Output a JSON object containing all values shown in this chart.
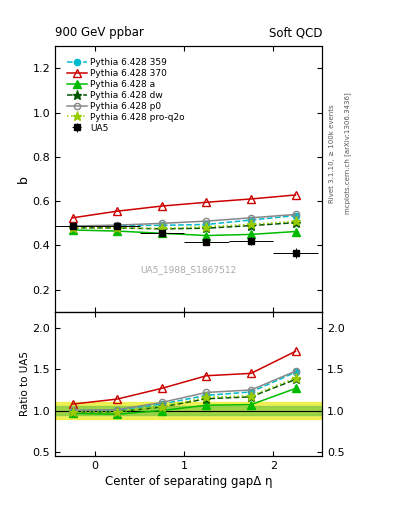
{
  "title_left": "900 GeV ppbar",
  "title_right": "Soft QCD",
  "ylabel_main": "b",
  "ylabel_ratio": "Ratio to UA5",
  "xlabel": "Center of separating gapΔ η",
  "watermark": "UA5_1988_S1867512",
  "right_label_top": "Rivet 3.1.10, ≥ 100k events",
  "right_label_bot": "mcplots.cern.ch [arXiv:1306.3436]",
  "x_points": [
    -0.25,
    0.25,
    0.75,
    1.25,
    1.75,
    2.25
  ],
  "x_ticks": [
    0,
    1,
    2
  ],
  "xlim": [
    -0.45,
    2.55
  ],
  "UA5_y": [
    0.487,
    0.487,
    0.455,
    0.418,
    0.42,
    0.365
  ],
  "UA5_yerr": [
    0.012,
    0.012,
    0.012,
    0.015,
    0.018,
    0.022
  ],
  "p359_y": [
    0.487,
    0.49,
    0.491,
    0.495,
    0.515,
    0.535
  ],
  "p370_y": [
    0.525,
    0.555,
    0.578,
    0.595,
    0.61,
    0.628
  ],
  "pa_y": [
    0.47,
    0.465,
    0.455,
    0.445,
    0.45,
    0.463
  ],
  "pdw_y": [
    0.48,
    0.479,
    0.475,
    0.478,
    0.49,
    0.503
  ],
  "pp0_y": [
    0.488,
    0.492,
    0.5,
    0.51,
    0.525,
    0.54
  ],
  "pproq2o_y": [
    0.48,
    0.478,
    0.477,
    0.485,
    0.495,
    0.51
  ],
  "ylim_main": [
    0.1,
    1.3
  ],
  "yticks_main": [
    0.2,
    0.4,
    0.6,
    0.8,
    1.0,
    1.2
  ],
  "ylim_ratio": [
    0.45,
    2.2
  ],
  "yticks_ratio": [
    0.5,
    1.0,
    1.5,
    2.0
  ],
  "color_UA5": "#000000",
  "color_p359": "#00bbcc",
  "color_p370": "#cc0000",
  "color_pa": "#00bb00",
  "color_pdw": "#005500",
  "color_pp0": "#888888",
  "color_pproq2o": "#99cc00",
  "band_yellow": "#eeee44",
  "band_green": "#88cc44"
}
